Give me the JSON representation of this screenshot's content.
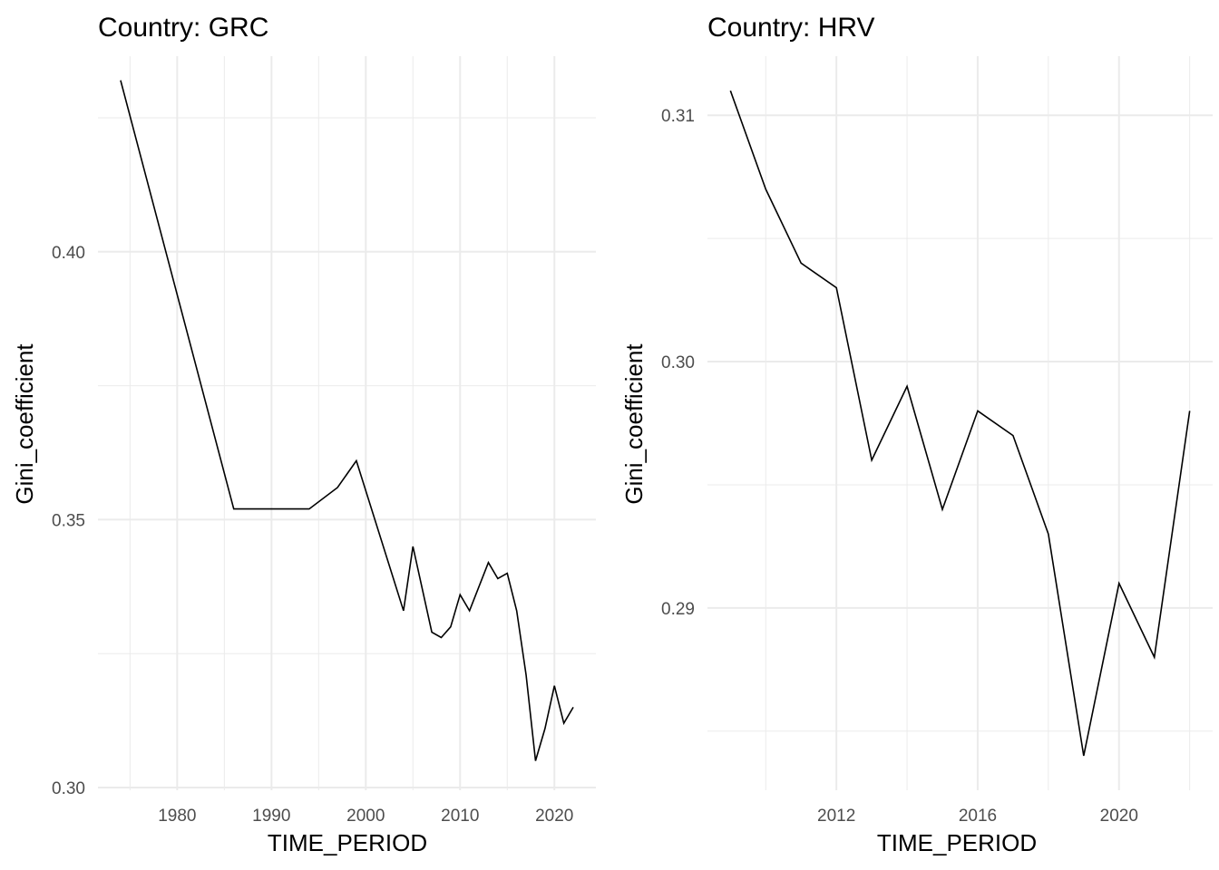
{
  "chart_data": [
    {
      "type": "line",
      "title": "Country: GRC",
      "xlabel": "TIME_PERIOD",
      "ylabel": "Gini_coefficient",
      "xlim": [
        1971.6,
        2024.4
      ],
      "ylim": [
        0.2995,
        0.4365
      ],
      "x_ticks": [
        1980,
        1990,
        2000,
        2010,
        2020
      ],
      "x_tick_labels": [
        "1980",
        "1990",
        "2000",
        "2010",
        "2020"
      ],
      "x_minor_ticks": [
        1975,
        1985,
        1995,
        2005,
        2015
      ],
      "y_ticks": [
        0.3,
        0.35,
        0.4
      ],
      "y_tick_labels": [
        "0.30",
        "0.35",
        "0.40"
      ],
      "y_minor_ticks": [
        0.325,
        0.375,
        0.425
      ],
      "grid": true,
      "series": [
        {
          "name": "GRC",
          "color": "#000000",
          "x": [
            1974,
            1986,
            1994,
            1997,
            1999,
            2004,
            2005,
            2007,
            2008,
            2009,
            2010,
            2011,
            2013,
            2014,
            2015,
            2016,
            2017,
            2018,
            2019,
            2020,
            2021,
            2022
          ],
          "y": [
            0.432,
            0.352,
            0.352,
            0.356,
            0.361,
            0.333,
            0.345,
            0.329,
            0.328,
            0.33,
            0.336,
            0.333,
            0.342,
            0.339,
            0.34,
            0.333,
            0.321,
            0.305,
            0.311,
            0.319,
            0.312,
            0.315
          ]
        }
      ]
    },
    {
      "type": "line",
      "title": "Country: HRV",
      "xlabel": "TIME_PERIOD",
      "ylabel": "Gini_coefficient",
      "xlim": [
        2008.35,
        2022.65
      ],
      "ylim": [
        0.2826,
        0.3124
      ],
      "x_ticks": [
        2012,
        2016,
        2020
      ],
      "x_tick_labels": [
        "2012",
        "2016",
        "2020"
      ],
      "x_minor_ticks": [
        2010,
        2014,
        2018,
        2022
      ],
      "y_ticks": [
        0.29,
        0.3,
        0.31
      ],
      "y_tick_labels": [
        "0.29",
        "0.30",
        "0.31"
      ],
      "y_minor_ticks": [
        0.285,
        0.295,
        0.305
      ],
      "grid": true,
      "series": [
        {
          "name": "HRV",
          "color": "#000000",
          "x": [
            2009,
            2010,
            2011,
            2012,
            2013,
            2014,
            2015,
            2016,
            2017,
            2018,
            2019,
            2020,
            2021,
            2022
          ],
          "y": [
            0.311,
            0.307,
            0.304,
            0.303,
            0.296,
            0.299,
            0.294,
            0.298,
            0.297,
            0.293,
            0.284,
            0.291,
            0.288,
            0.298
          ]
        }
      ]
    }
  ]
}
